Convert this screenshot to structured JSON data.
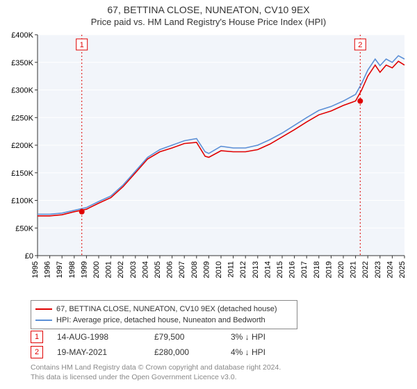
{
  "title": "67, BETTINA CLOSE, NUNEATON, CV10 9EX",
  "subtitle": "Price paid vs. HM Land Registry's House Price Index (HPI)",
  "chart": {
    "type": "line",
    "plot_bg": "#f2f5fa",
    "grid_color": "#ffffff",
    "axis_color": "#333333",
    "label_fontsize": 11,
    "ylim": [
      0,
      400000
    ],
    "ytick_step": 50000,
    "ytick_prefix": "£",
    "ytick_suffix": "K",
    "xlim": [
      1995,
      2025
    ],
    "xtick_step": 1,
    "series": [
      {
        "name": "67, BETTINA CLOSE, NUNEATON, CV10 9EX (detached house)",
        "color": "#e00000",
        "line_width": 1.6,
        "points": [
          [
            1995,
            72000
          ],
          [
            1996,
            72000
          ],
          [
            1997,
            74000
          ],
          [
            1998,
            79500
          ],
          [
            1999,
            84000
          ],
          [
            2000,
            95000
          ],
          [
            2001,
            105000
          ],
          [
            2002,
            125000
          ],
          [
            2003,
            150000
          ],
          [
            2004,
            175000
          ],
          [
            2005,
            188000
          ],
          [
            2006,
            195000
          ],
          [
            2007,
            203000
          ],
          [
            2008,
            205000
          ],
          [
            2008.7,
            180000
          ],
          [
            2009,
            178000
          ],
          [
            2010,
            190000
          ],
          [
            2011,
            188000
          ],
          [
            2012,
            188000
          ],
          [
            2013,
            192000
          ],
          [
            2014,
            202000
          ],
          [
            2015,
            215000
          ],
          [
            2016,
            228000
          ],
          [
            2017,
            242000
          ],
          [
            2018,
            255000
          ],
          [
            2019,
            262000
          ],
          [
            2020,
            272000
          ],
          [
            2021,
            280000
          ],
          [
            2021.5,
            300000
          ],
          [
            2022,
            325000
          ],
          [
            2022.6,
            345000
          ],
          [
            2023,
            332000
          ],
          [
            2023.5,
            345000
          ],
          [
            2024,
            340000
          ],
          [
            2024.5,
            352000
          ],
          [
            2025,
            345000
          ]
        ]
      },
      {
        "name": "HPI: Average price, detached house, Nuneaton and Bedworth",
        "color": "#5b8fd6",
        "line_width": 1.6,
        "points": [
          [
            1995,
            75000
          ],
          [
            1996,
            75000
          ],
          [
            1997,
            77000
          ],
          [
            1998,
            82000
          ],
          [
            1999,
            87000
          ],
          [
            2000,
            98000
          ],
          [
            2001,
            108000
          ],
          [
            2002,
            128000
          ],
          [
            2003,
            153000
          ],
          [
            2004,
            178000
          ],
          [
            2005,
            192000
          ],
          [
            2006,
            200000
          ],
          [
            2007,
            208000
          ],
          [
            2008,
            212000
          ],
          [
            2008.7,
            188000
          ],
          [
            2009,
            185000
          ],
          [
            2010,
            198000
          ],
          [
            2011,
            195000
          ],
          [
            2012,
            195000
          ],
          [
            2013,
            200000
          ],
          [
            2014,
            210000
          ],
          [
            2015,
            222000
          ],
          [
            2016,
            236000
          ],
          [
            2017,
            250000
          ],
          [
            2018,
            263000
          ],
          [
            2019,
            270000
          ],
          [
            2020,
            280000
          ],
          [
            2021,
            292000
          ],
          [
            2021.5,
            312000
          ],
          [
            2022,
            336000
          ],
          [
            2022.6,
            356000
          ],
          [
            2023,
            344000
          ],
          [
            2023.5,
            356000
          ],
          [
            2024,
            350000
          ],
          [
            2024.5,
            362000
          ],
          [
            2025,
            356000
          ]
        ]
      }
    ],
    "sale_markers": [
      {
        "idx": "1",
        "x": 1998.62,
        "y": 79500
      },
      {
        "idx": "2",
        "x": 2021.38,
        "y": 280000
      }
    ]
  },
  "legend": {
    "items": [
      {
        "color": "#e00000",
        "label": "67, BETTINA CLOSE, NUNEATON, CV10 9EX (detached house)"
      },
      {
        "color": "#5b8fd6",
        "label": "HPI: Average price, detached house, Nuneaton and Bedworth"
      }
    ]
  },
  "sales": [
    {
      "idx": "1",
      "date": "14-AUG-1998",
      "price": "£79,500",
      "rel": "3% ↓ HPI"
    },
    {
      "idx": "2",
      "date": "19-MAY-2021",
      "price": "£280,000",
      "rel": "4% ↓ HPI"
    }
  ],
  "footer": {
    "line1": "Contains HM Land Registry data © Crown copyright and database right 2024.",
    "line2": "This data is licensed under the Open Government Licence v3.0."
  }
}
